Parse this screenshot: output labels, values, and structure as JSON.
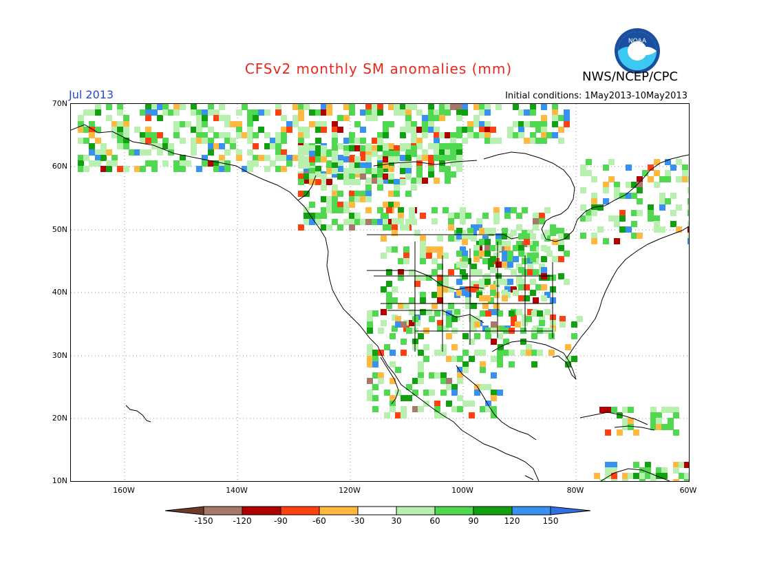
{
  "header": {
    "title": "CFSv2 monthly SM anomalies (mm)",
    "agency": "NWS/NCEP/CPC",
    "month": "Jul 2013",
    "initial_conditions": "Initial conditions: 1May2013-10May2013",
    "logo_text": "NOAA"
  },
  "axes": {
    "lat_labels": [
      "70N",
      "60N",
      "50N",
      "40N",
      "30N",
      "20N",
      "10N"
    ],
    "lon_labels": [
      "160W",
      "140W",
      "120W",
      "100W",
      "80W",
      "60W"
    ]
  },
  "legend": {
    "tick_labels": [
      "-150",
      "-120",
      "-90",
      "-60",
      "-30",
      "30",
      "60",
      "90",
      "120",
      "150"
    ],
    "colors": [
      "#6a3a2a",
      "#a8786a",
      "#b00000",
      "#ff4010",
      "#ffb840",
      "#ffffff",
      "#b8f0b0",
      "#50d850",
      "#10a010",
      "#3890f0",
      "#3070e0"
    ]
  },
  "map": {
    "region": "North America",
    "lat_range": [
      10,
      70
    ],
    "lon_range": [
      -170,
      -60
    ],
    "grid": true,
    "colors": {
      "land_border": "#000000",
      "grid": "#888888"
    }
  }
}
